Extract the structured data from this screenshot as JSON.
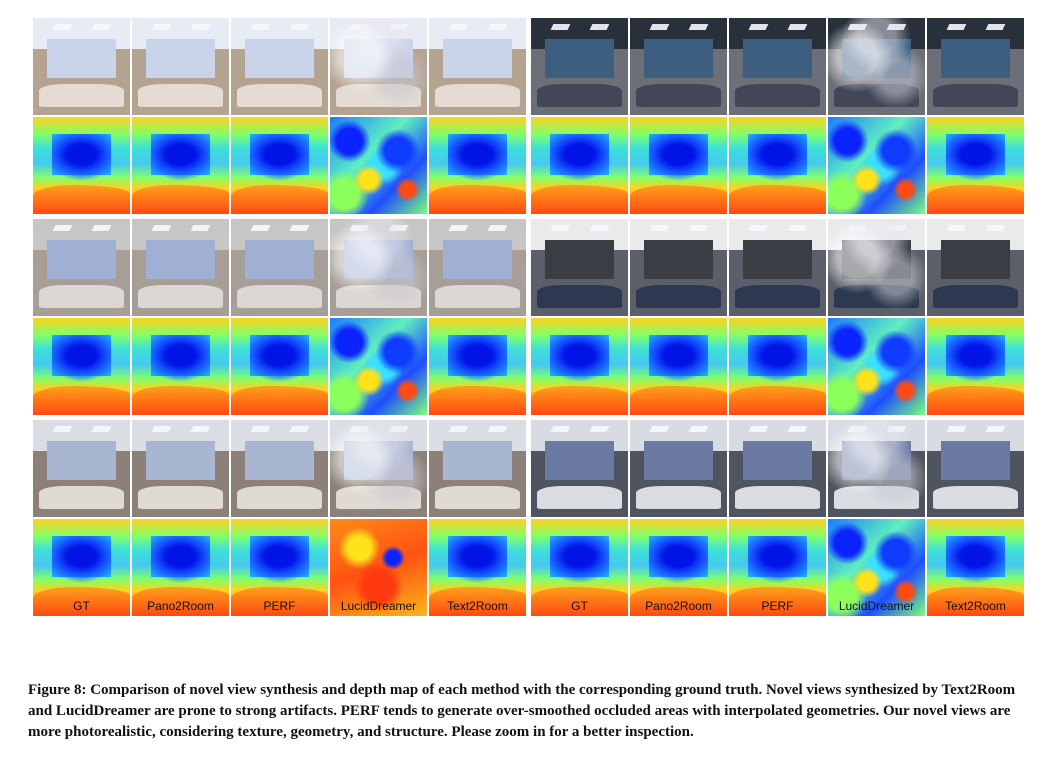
{
  "column_labels": [
    "GT",
    "Pano2Room",
    "PERF",
    "LucidDreamer",
    "Text2Room",
    "GT",
    "Pano2Room",
    "PERF",
    "LucidDreamer",
    "Text2Room"
  ],
  "scenes": [
    {
      "ceiling": "#e7ebf4",
      "wall": "#c9d3ea",
      "floor": "#b5a392",
      "furn": "#ece6de",
      "depth_style": "normal"
    },
    {
      "ceiling": "#27303b",
      "wall": "#3e5e80",
      "floor": "#6d6f78",
      "furn": "#3b4152",
      "depth_style": "normal"
    },
    {
      "ceiling": "#c8c6c4",
      "wall": "#9fb0d4",
      "floor": "#a79f97",
      "furn": "#e4e1dc",
      "depth_style": "normal"
    },
    {
      "ceiling": "#eaeaea",
      "wall": "#3b3d45",
      "floor": "#5b5f69",
      "furn": "#24324c",
      "depth_style": "normal"
    },
    {
      "ceiling": "#dadde3",
      "wall": "#a9b6d2",
      "floor": "#8d8078",
      "furn": "#efeae4",
      "depth_style": "orange"
    },
    {
      "ceiling": "#d8dbe2",
      "wall": "#6b7aa3",
      "floor": "#4f5560",
      "furn": "#f2f4f8",
      "depth_style": "normal"
    }
  ],
  "caption": "Figure 8: Comparison of novel view synthesis and depth map of each method with the corresponding ground truth. Novel views synthesized by Text2Room and LucidDreamer are prone to strong artifacts. PERF tends to generate over-smoothed occluded areas with interpolated geometries. Our novel views are more photorealistic, considering texture, geometry, and structure. Please zoom in for a better inspection."
}
